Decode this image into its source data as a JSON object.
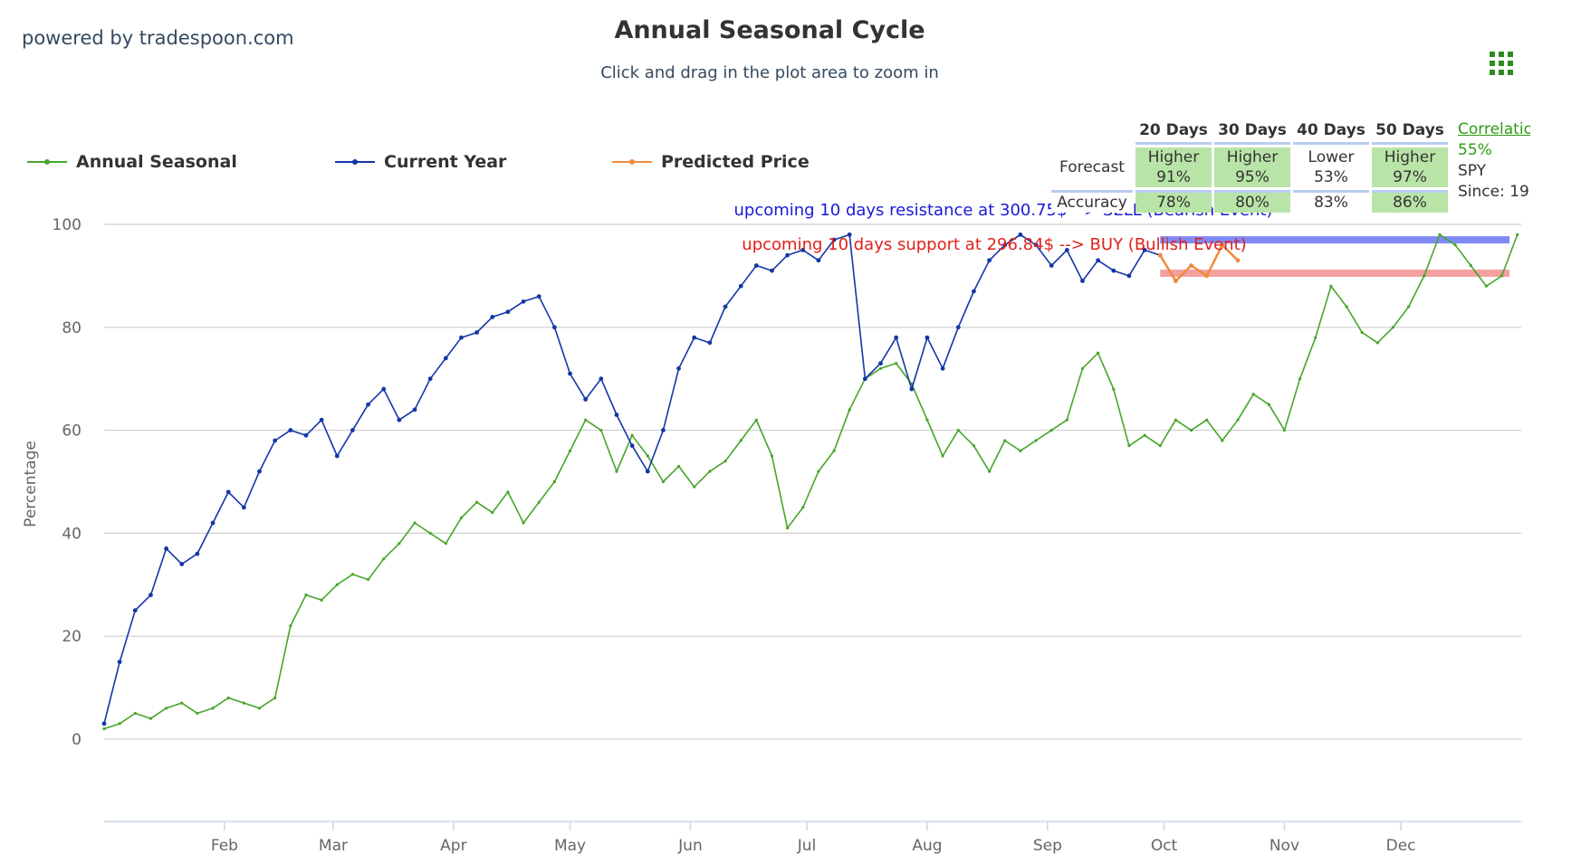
{
  "header": {
    "powered_by": "powered by tradespoon.com",
    "title": "Annual Seasonal Cycle",
    "subtitle": "Click and drag in the plot area to zoom in",
    "menu_icon": "grid-menu-icon"
  },
  "legend": [
    {
      "name": "Annual Seasonal",
      "color": "#47a52a"
    },
    {
      "name": "Current Year",
      "color": "#1336a8"
    },
    {
      "name": "Predicted Price",
      "color": "#f08a3c"
    }
  ],
  "forecast": {
    "headers": [
      "20 Days",
      "30 Days",
      "40 Days",
      "50 Days"
    ],
    "forecast_label": "Forecast",
    "accuracy_label": "Accuracy",
    "forecast_direction": [
      "Higher",
      "Higher",
      "Lower",
      "Higher"
    ],
    "forecast_pct": [
      "91%",
      "95%",
      "53%",
      "97%"
    ],
    "accuracy": [
      "78%",
      "80%",
      "83%",
      "86%"
    ]
  },
  "correlation": {
    "label": "Correlation",
    "value": "55%",
    "symbol": "SPY",
    "since": "Since: 19"
  },
  "chart_data": {
    "type": "line",
    "ylabel": "Percentage",
    "ylim": [
      -16,
      100
    ],
    "yticks": [
      0,
      20,
      40,
      60,
      80,
      100
    ],
    "x_range_days": [
      0,
      365
    ],
    "month_labels": [
      "Feb",
      "Mar",
      "Apr",
      "May",
      "Jun",
      "Jul",
      "Aug",
      "Sep",
      "Oct",
      "Nov",
      "Dec"
    ],
    "month_day": [
      31,
      59,
      90,
      120,
      151,
      181,
      212,
      243,
      273,
      304,
      334
    ],
    "annotations": [
      {
        "text": "upcoming 10 days resistance at 300.75$ --> SELL (Bearish Event)",
        "color": "#1a1ad6",
        "level": 97
      },
      {
        "text": "upcoming 10 days support at 296.84$ --> BUY (Bullish Event)",
        "color": "#e0201b",
        "level": 90
      }
    ],
    "resistance": {
      "level": 97,
      "from_day": 272,
      "to_day": 362,
      "color": "#7f8af5"
    },
    "support": {
      "level": 90.5,
      "from_day": 272,
      "to_day": 362,
      "color": "#f4a0a0"
    },
    "series": [
      {
        "name": "Annual Seasonal",
        "color": "#47a52a",
        "x": [
          0,
          4,
          8,
          12,
          16,
          20,
          24,
          28,
          32,
          36,
          40,
          44,
          48,
          52,
          56,
          60,
          64,
          68,
          72,
          76,
          80,
          84,
          88,
          92,
          96,
          100,
          104,
          108,
          112,
          116,
          120,
          124,
          128,
          132,
          136,
          140,
          144,
          148,
          152,
          156,
          160,
          164,
          168,
          172,
          176,
          180,
          184,
          188,
          192,
          196,
          200,
          204,
          208,
          212,
          216,
          220,
          224,
          228,
          232,
          236,
          240,
          244,
          248,
          252,
          256,
          260,
          264,
          268,
          272,
          276,
          280,
          284,
          288,
          292,
          296,
          300,
          304,
          308,
          312,
          316,
          320,
          324,
          328,
          332,
          336,
          340,
          344,
          348,
          352,
          356,
          360,
          364
        ],
        "values": [
          2,
          3,
          5,
          4,
          6,
          7,
          5,
          6,
          8,
          7,
          6,
          8,
          22,
          28,
          27,
          30,
          32,
          31,
          35,
          38,
          42,
          40,
          38,
          43,
          46,
          44,
          48,
          42,
          46,
          50,
          56,
          62,
          60,
          52,
          59,
          55,
          50,
          53,
          49,
          52,
          54,
          58,
          62,
          55,
          41,
          45,
          52,
          56,
          64,
          70,
          72,
          73,
          69,
          62,
          55,
          60,
          57,
          52,
          58,
          56,
          58,
          60,
          62,
          72,
          75,
          68,
          57,
          59,
          57,
          62,
          60,
          62,
          58,
          62,
          67,
          65,
          60,
          70,
          78,
          88,
          84,
          79,
          77,
          80,
          84,
          90,
          98,
          96,
          92,
          88,
          90,
          98
        ]
      },
      {
        "name": "Current Year",
        "color": "#1336a8",
        "x": [
          0,
          4,
          8,
          12,
          16,
          20,
          24,
          28,
          32,
          36,
          40,
          44,
          48,
          52,
          56,
          60,
          64,
          68,
          72,
          76,
          80,
          84,
          88,
          92,
          96,
          100,
          104,
          108,
          112,
          116,
          120,
          124,
          128,
          132,
          136,
          140,
          144,
          148,
          152,
          156,
          160,
          164,
          168,
          172,
          176,
          180,
          184,
          188,
          192,
          196,
          200,
          204,
          208,
          212,
          216,
          220,
          224,
          228,
          232,
          236,
          240,
          244,
          248,
          252,
          256,
          260,
          264,
          268,
          272
        ],
        "values": [
          3,
          15,
          25,
          28,
          37,
          34,
          36,
          42,
          48,
          45,
          52,
          58,
          60,
          59,
          62,
          55,
          60,
          65,
          68,
          62,
          64,
          70,
          74,
          78,
          79,
          82,
          83,
          85,
          86,
          80,
          71,
          66,
          70,
          63,
          57,
          52,
          60,
          72,
          78,
          77,
          84,
          88,
          92,
          91,
          94,
          95,
          93,
          97,
          98,
          70,
          73,
          78,
          68,
          78,
          72,
          80,
          87,
          93,
          96,
          98,
          96,
          92,
          95,
          89,
          93,
          91,
          90,
          95,
          94
        ]
      },
      {
        "name": "Predicted Price",
        "color": "#f08a3c",
        "x": [
          272,
          276,
          280,
          284,
          288,
          292
        ],
        "values": [
          94,
          89,
          92,
          90,
          96,
          93
        ]
      }
    ]
  }
}
